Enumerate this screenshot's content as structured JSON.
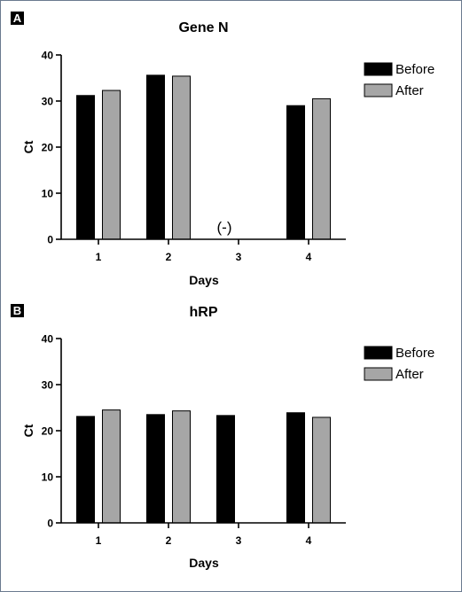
{
  "chart_data": [
    {
      "panel": "A",
      "type": "bar",
      "title": "Gene N",
      "xlabel": "Days",
      "ylabel": "Ct",
      "ylim": [
        0,
        40
      ],
      "yticks": [
        "0",
        "10",
        "20",
        "30",
        "40"
      ],
      "categories": [
        "1",
        "2",
        "3",
        "4"
      ],
      "series": [
        {
          "name": "Before",
          "color": "#000000",
          "values": [
            31.2,
            35.6,
            null,
            29.0
          ]
        },
        {
          "name": "After",
          "color": "#a6a6a6",
          "values": [
            32.3,
            35.4,
            null,
            30.5
          ]
        }
      ],
      "annotations": [
        {
          "category": "3",
          "text": "(-)"
        }
      ],
      "legend_position": "top-right",
      "grid": false
    },
    {
      "panel": "B",
      "type": "bar",
      "title": "hRP",
      "xlabel": "Days",
      "ylabel": "Ct",
      "ylim": [
        0,
        40
      ],
      "yticks": [
        "0",
        "10",
        "20",
        "30",
        "40"
      ],
      "categories": [
        "1",
        "2",
        "3",
        "4"
      ],
      "series": [
        {
          "name": "Before",
          "color": "#000000",
          "values": [
            23.1,
            23.5,
            23.3,
            23.9
          ]
        },
        {
          "name": "After",
          "color": "#a6a6a6",
          "values": [
            24.5,
            24.3,
            null,
            22.9
          ]
        }
      ],
      "annotations": [],
      "legend_position": "top-right",
      "grid": false
    }
  ]
}
